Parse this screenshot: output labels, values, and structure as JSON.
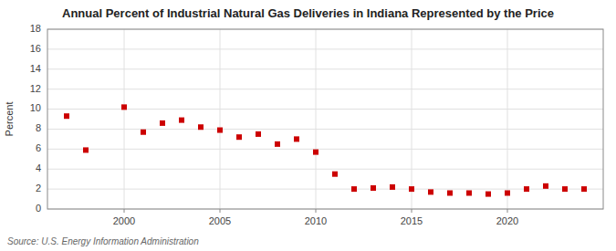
{
  "chart_data": {
    "type": "scatter",
    "title": "Annual Percent of Industrial Natural Gas Deliveries in Indiana Represented by the Price",
    "ylabel": "Percent",
    "source": "Source: U.S. Energy Information Administration",
    "x": [
      1997,
      1998,
      2000,
      2001,
      2002,
      2003,
      2004,
      2005,
      2006,
      2007,
      2008,
      2009,
      2010,
      2011,
      2012,
      2013,
      2014,
      2015,
      2016,
      2017,
      2018,
      2019,
      2020,
      2021,
      2022,
      2023,
      2024
    ],
    "values": [
      9.3,
      5.9,
      10.2,
      7.7,
      8.6,
      8.9,
      8.2,
      7.9,
      7.2,
      7.5,
      6.5,
      7.0,
      5.7,
      3.5,
      2.0,
      2.1,
      2.2,
      2.0,
      1.7,
      1.6,
      1.6,
      1.5,
      1.6,
      2.0,
      2.3,
      2.0,
      2.0
    ],
    "color": "#cc0000",
    "marker": "square",
    "xlim": [
      1996,
      2025
    ],
    "ylim": [
      0,
      18
    ],
    "xticks": [
      2000,
      2005,
      2010,
      2015,
      2020
    ],
    "yticks": [
      0,
      2,
      4,
      6,
      8,
      10,
      12,
      14,
      16,
      18
    ],
    "grid": true
  }
}
